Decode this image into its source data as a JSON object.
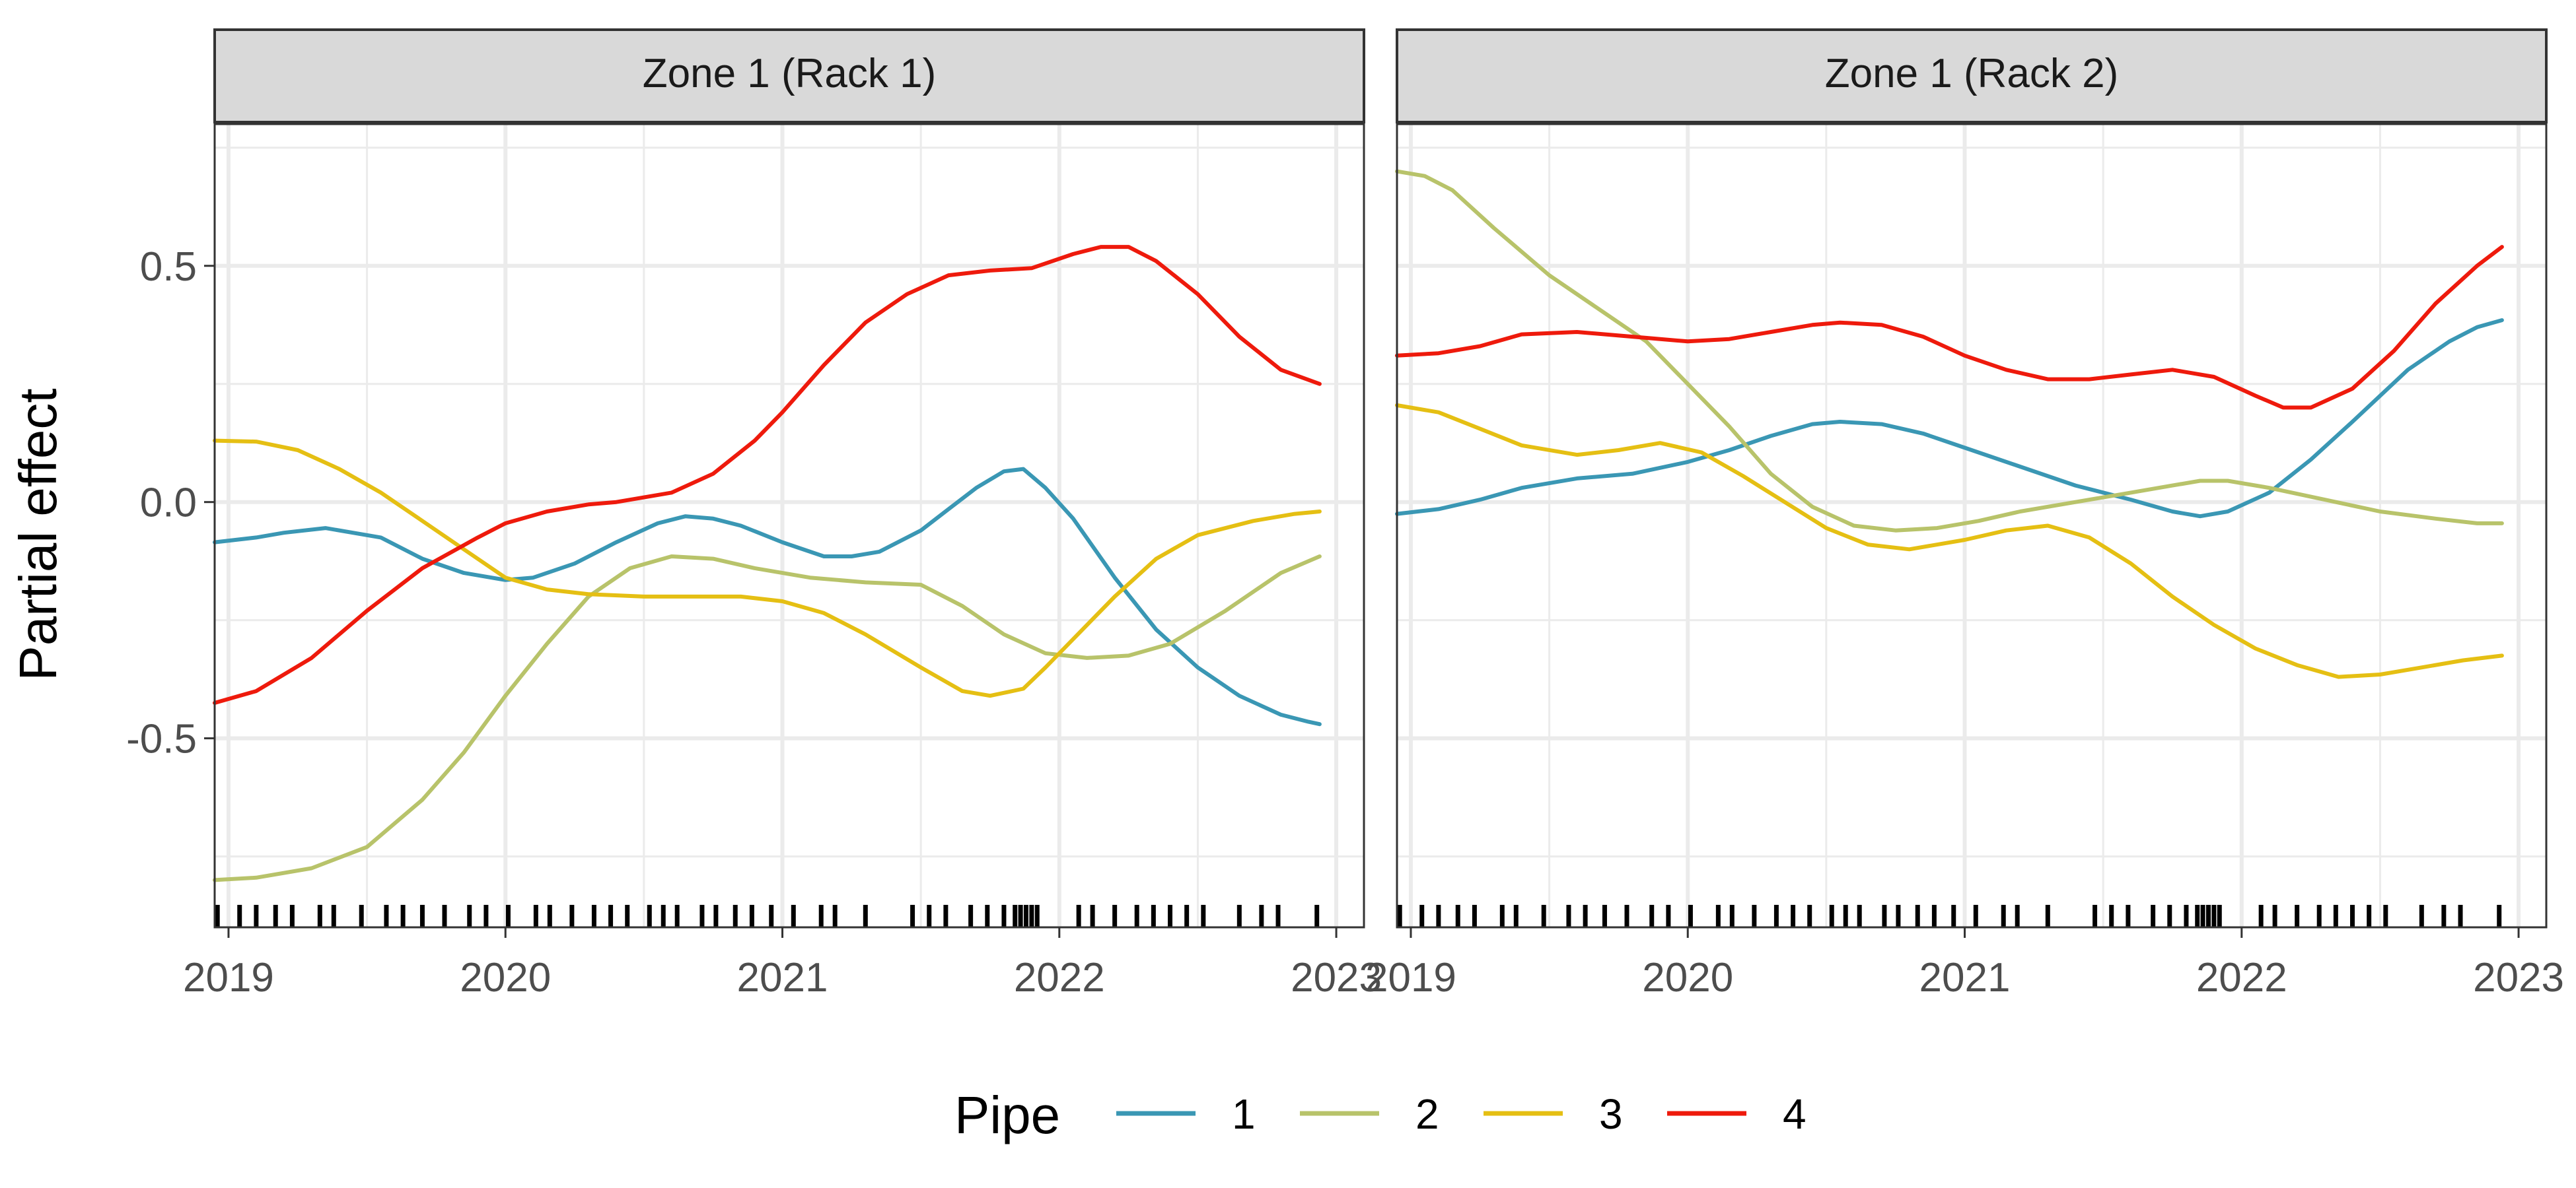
{
  "chart_data": {
    "type": "line",
    "ylabel": "Partial effect",
    "xlabel": "",
    "legend": {
      "title": "Pipe",
      "position": "bottom"
    },
    "x_ticks": [
      "2019",
      "2020",
      "2021",
      "2022",
      "2023"
    ],
    "y_ticks": [
      "-0.5",
      "0.0",
      "0.5"
    ],
    "x_range": [
      2018.95,
      2023.1
    ],
    "y_range": [
      -0.9,
      0.8
    ],
    "grid": true,
    "series_colors": {
      "1": "#3A97B4",
      "2": "#B8C36A",
      "3": "#E5BF13",
      "4": "#EE1A0C"
    },
    "rug": [
      2018.96,
      2019.04,
      2019.1,
      2019.17,
      2019.23,
      2019.33,
      2019.38,
      2019.48,
      2019.57,
      2019.63,
      2019.7,
      2019.78,
      2019.87,
      2019.93,
      2020.01,
      2020.11,
      2020.16,
      2020.24,
      2020.32,
      2020.38,
      2020.44,
      2020.52,
      2020.57,
      2020.62,
      2020.71,
      2020.76,
      2020.83,
      2020.89,
      2020.96,
      2021.04,
      2021.14,
      2021.19,
      2021.3,
      2021.47,
      2021.53,
      2021.59,
      2021.68,
      2021.74,
      2021.8,
      2021.84,
      2021.86,
      2021.88,
      2021.9,
      2021.92,
      2022.07,
      2022.12,
      2022.2,
      2022.28,
      2022.34,
      2022.4,
      2022.46,
      2022.52,
      2022.65,
      2022.73,
      2022.79,
      2022.93
    ],
    "panels": [
      {
        "title": "Zone 1 (Rack 1)",
        "series": [
          {
            "name": "1",
            "x": [
              2018.95,
              2019.1,
              2019.2,
              2019.35,
              2019.55,
              2019.7,
              2019.85,
              2020.0,
              2020.1,
              2020.25,
              2020.4,
              2020.55,
              2020.65,
              2020.75,
              2020.85,
              2021.0,
              2021.15,
              2021.25,
              2021.35,
              2021.5,
              2021.6,
              2021.7,
              2021.8,
              2021.87,
              2021.95,
              2022.05,
              2022.2,
              2022.35,
              2022.5,
              2022.65,
              2022.8,
              2022.9,
              2022.94
            ],
            "y": [
              -0.085,
              -0.075,
              -0.065,
              -0.055,
              -0.075,
              -0.12,
              -0.15,
              -0.165,
              -0.16,
              -0.13,
              -0.085,
              -0.045,
              -0.03,
              -0.035,
              -0.05,
              -0.085,
              -0.115,
              -0.115,
              -0.105,
              -0.06,
              -0.015,
              0.03,
              0.065,
              0.07,
              0.03,
              -0.035,
              -0.16,
              -0.27,
              -0.35,
              -0.41,
              -0.45,
              -0.465,
              -0.47
            ]
          },
          {
            "name": "2",
            "x": [
              2018.95,
              2019.1,
              2019.3,
              2019.5,
              2019.7,
              2019.85,
              2020.0,
              2020.15,
              2020.3,
              2020.45,
              2020.6,
              2020.75,
              2020.9,
              2021.1,
              2021.3,
              2021.5,
              2021.65,
              2021.8,
              2021.95,
              2022.1,
              2022.25,
              2022.4,
              2022.6,
              2022.8,
              2022.94
            ],
            "y": [
              -0.8,
              -0.795,
              -0.775,
              -0.73,
              -0.63,
              -0.53,
              -0.41,
              -0.3,
              -0.2,
              -0.14,
              -0.115,
              -0.12,
              -0.14,
              -0.16,
              -0.17,
              -0.175,
              -0.22,
              -0.28,
              -0.32,
              -0.33,
              -0.325,
              -0.3,
              -0.23,
              -0.15,
              -0.115
            ]
          },
          {
            "name": "3",
            "x": [
              2018.95,
              2019.1,
              2019.25,
              2019.4,
              2019.55,
              2019.7,
              2019.85,
              2020.0,
              2020.15,
              2020.3,
              2020.5,
              2020.7,
              2020.85,
              2021.0,
              2021.15,
              2021.3,
              2021.5,
              2021.65,
              2021.75,
              2021.87,
              2021.95,
              2022.05,
              2022.2,
              2022.35,
              2022.5,
              2022.7,
              2022.85,
              2022.94
            ],
            "y": [
              0.13,
              0.128,
              0.11,
              0.07,
              0.02,
              -0.04,
              -0.1,
              -0.16,
              -0.185,
              -0.195,
              -0.2,
              -0.2,
              -0.2,
              -0.21,
              -0.235,
              -0.28,
              -0.35,
              -0.4,
              -0.41,
              -0.395,
              -0.35,
              -0.29,
              -0.2,
              -0.12,
              -0.07,
              -0.04,
              -0.025,
              -0.02
            ]
          },
          {
            "name": "4",
            "x": [
              2018.95,
              2019.1,
              2019.3,
              2019.5,
              2019.7,
              2019.9,
              2020.0,
              2020.15,
              2020.3,
              2020.4,
              2020.6,
              2020.75,
              2020.9,
              2021.0,
              2021.15,
              2021.3,
              2021.45,
              2021.6,
              2021.75,
              2021.9,
              2022.05,
              2022.15,
              2022.25,
              2022.35,
              2022.5,
              2022.65,
              2022.8,
              2022.94
            ],
            "y": [
              -0.425,
              -0.4,
              -0.33,
              -0.23,
              -0.14,
              -0.075,
              -0.045,
              -0.02,
              -0.005,
              0.0,
              0.02,
              0.06,
              0.13,
              0.19,
              0.29,
              0.38,
              0.44,
              0.48,
              0.49,
              0.495,
              0.525,
              0.54,
              0.54,
              0.51,
              0.44,
              0.35,
              0.28,
              0.25
            ]
          }
        ]
      },
      {
        "title": "Zone 1 (Rack 2)",
        "series": [
          {
            "name": "1",
            "x": [
              2018.95,
              2019.1,
              2019.25,
              2019.4,
              2019.6,
              2019.8,
              2020.0,
              2020.15,
              2020.3,
              2020.45,
              2020.55,
              2020.7,
              2020.85,
              2021.0,
              2021.2,
              2021.4,
              2021.6,
              2021.75,
              2021.85,
              2021.95,
              2022.1,
              2022.25,
              2022.4,
              2022.6,
              2022.75,
              2022.85,
              2022.94
            ],
            "y": [
              -0.025,
              -0.015,
              0.005,
              0.03,
              0.05,
              0.06,
              0.085,
              0.11,
              0.14,
              0.165,
              0.17,
              0.165,
              0.145,
              0.115,
              0.075,
              0.035,
              0.005,
              -0.02,
              -0.03,
              -0.02,
              0.02,
              0.09,
              0.17,
              0.28,
              0.34,
              0.37,
              0.385
            ]
          },
          {
            "name": "2",
            "x": [
              2018.95,
              2019.05,
              2019.15,
              2019.3,
              2019.5,
              2019.7,
              2019.85,
              2020.0,
              2020.15,
              2020.3,
              2020.45,
              2020.6,
              2020.75,
              2020.9,
              2021.05,
              2021.2,
              2021.4,
              2021.6,
              2021.75,
              2021.85,
              2021.95,
              2022.1,
              2022.3,
              2022.5,
              2022.7,
              2022.85,
              2022.94
            ],
            "y": [
              0.7,
              0.69,
              0.66,
              0.58,
              0.48,
              0.4,
              0.34,
              0.25,
              0.16,
              0.06,
              -0.01,
              -0.05,
              -0.06,
              -0.055,
              -0.04,
              -0.02,
              0.0,
              0.02,
              0.035,
              0.045,
              0.045,
              0.03,
              0.005,
              -0.02,
              -0.035,
              -0.045,
              -0.045
            ]
          },
          {
            "name": "3",
            "x": [
              2018.95,
              2019.1,
              2019.25,
              2019.4,
              2019.6,
              2019.75,
              2019.9,
              2020.05,
              2020.2,
              2020.35,
              2020.5,
              2020.65,
              2020.8,
              2021.0,
              2021.15,
              2021.3,
              2021.45,
              2021.6,
              2021.75,
              2021.9,
              2022.05,
              2022.2,
              2022.35,
              2022.5,
              2022.65,
              2022.8,
              2022.94
            ],
            "y": [
              0.205,
              0.19,
              0.155,
              0.12,
              0.1,
              0.11,
              0.125,
              0.105,
              0.055,
              0.0,
              -0.055,
              -0.09,
              -0.1,
              -0.08,
              -0.06,
              -0.05,
              -0.075,
              -0.13,
              -0.2,
              -0.26,
              -0.31,
              -0.345,
              -0.37,
              -0.365,
              -0.35,
              -0.335,
              -0.325
            ]
          },
          {
            "name": "4",
            "x": [
              2018.95,
              2019.1,
              2019.25,
              2019.4,
              2019.6,
              2019.8,
              2020.0,
              2020.15,
              2020.3,
              2020.45,
              2020.55,
              2020.7,
              2020.85,
              2021.0,
              2021.15,
              2021.3,
              2021.45,
              2021.6,
              2021.75,
              2021.9,
              2022.05,
              2022.15,
              2022.25,
              2022.4,
              2022.55,
              2022.7,
              2022.85,
              2022.94
            ],
            "y": [
              0.31,
              0.315,
              0.33,
              0.355,
              0.36,
              0.35,
              0.34,
              0.345,
              0.36,
              0.375,
              0.38,
              0.375,
              0.35,
              0.31,
              0.28,
              0.26,
              0.26,
              0.27,
              0.28,
              0.265,
              0.225,
              0.2,
              0.2,
              0.24,
              0.32,
              0.42,
              0.5,
              0.54
            ]
          }
        ]
      }
    ]
  }
}
